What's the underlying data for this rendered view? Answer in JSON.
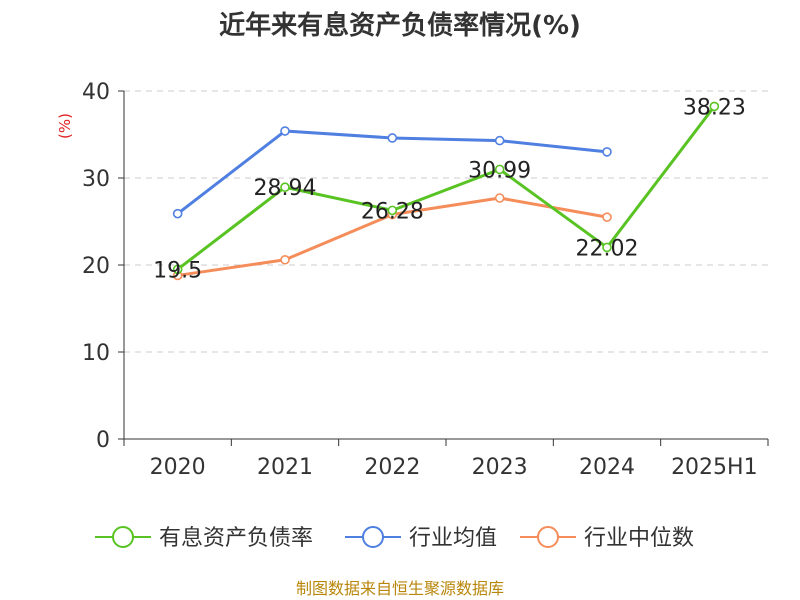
{
  "chart_data": {
    "type": "line",
    "title": "近年来有息资产负债率情况(%)",
    "ylabel": "(%)",
    "ylim": [
      0,
      40
    ],
    "yticks": [
      0,
      10,
      20,
      30,
      40
    ],
    "grid": true,
    "legend_position": "bottom",
    "categories": [
      "2020",
      "2021",
      "2022",
      "2023",
      "2024",
      "2025H1"
    ],
    "series": [
      {
        "name": "有息资产负债率",
        "color": "#58c322",
        "values": [
          19.5,
          28.94,
          26.28,
          30.99,
          22.02,
          38.23
        ],
        "labels": [
          "19.5",
          "28.94",
          "26.28",
          "30.99",
          "22.02",
          "38.23"
        ]
      },
      {
        "name": "行业均值",
        "color": "#4f7fe0",
        "values": [
          25.9,
          35.4,
          34.6,
          34.3,
          33.0,
          null
        ]
      },
      {
        "name": "行业中位数",
        "color": "#f58d5a",
        "values": [
          18.8,
          20.6,
          25.8,
          27.7,
          25.5,
          null
        ]
      }
    ],
    "source": "制图数据来自恒生聚源数据库"
  }
}
